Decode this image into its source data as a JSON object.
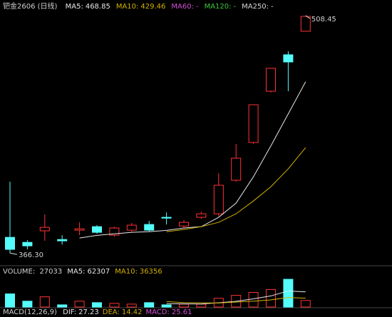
{
  "chart_data": {
    "type": "candlestick",
    "title": "钯金2606 (日线)",
    "up_color": "#ff3232",
    "down_color": "#54fcfc",
    "open": [
      375.7,
      372.7,
      379.6,
      374.4,
      380.0,
      382.1,
      377.0,
      380.0,
      383.4,
      387.7,
      382.5,
      387.7,
      389.8,
      409.9,
      432.5,
      463.2,
      485.0,
      499.1
    ],
    "high": [
      409.0,
      374.0,
      389.4,
      377.0,
      384.7,
      383.0,
      382.1,
      384.3,
      385.5,
      390.6,
      386.0,
      391.1,
      414.1,
      431.6,
      455.1,
      476.9,
      487.1,
      508.45
    ],
    "low": [
      366.3,
      368.5,
      373.6,
      371.4,
      377.0,
      377.9,
      376.1,
      379.1,
      379.1,
      383.4,
      381.3,
      386.8,
      388.5,
      409.0,
      431.6,
      462.4,
      463.2,
      499.1
    ],
    "close": [
      368.5,
      370.6,
      381.7,
      373.6,
      380.8,
      378.7,
      381.3,
      383.0,
      380.0,
      387.2,
      384.7,
      389.8,
      406.9,
      423.1,
      455.1,
      476.9,
      480.7,
      508.0
    ],
    "ylim": [
      360.0,
      511.4
    ],
    "annotations": [
      {
        "text": "508.45"
      },
      {
        "text": "366.30"
      }
    ],
    "series": [
      {
        "name": "MA5:",
        "color": "#e8e8e8",
        "values": [
          null,
          null,
          null,
          null,
          375.3,
          376.9,
          377.8,
          378.7,
          379.1,
          379.9,
          381.3,
          382.1,
          387.7,
          396.2,
          412.0,
          430.4,
          449.6,
          468.85
        ]
      },
      {
        "name": "MA10:",
        "color": "#d4b100",
        "values": [
          null,
          null,
          null,
          null,
          null,
          null,
          null,
          null,
          null,
          379.1,
          380.4,
          382.1,
          384.7,
          389.8,
          397.5,
          406.0,
          416.7,
          429.46
        ]
      }
    ],
    "other_ma": [
      {
        "name": "MA60:",
        "text": "-",
        "color": "#d24fd2"
      },
      {
        "name": "MA120:",
        "text": "-",
        "color": "#3cc83c"
      },
      {
        "name": "MA250:",
        "text": "-",
        "color": "#d8d8d8"
      }
    ],
    "volume": {
      "title": "VOLUME:",
      "values": [
        54000,
        24000,
        42000,
        9000,
        24000,
        18000,
        15000,
        12000,
        18000,
        9000,
        12000,
        12000,
        36000,
        48000,
        60000,
        72000,
        114000,
        27033
      ],
      "ylim": [
        0,
        120000
      ],
      "series": [
        {
          "name": "MA5:",
          "color": "#e8e8e8",
          "values": [
            null,
            null,
            null,
            null,
            null,
            null,
            null,
            null,
            null,
            14400,
            13200,
            12600,
            17400,
            23400,
            33600,
            45600,
            66000,
            62307
          ]
        },
        {
          "name": "MA10:",
          "color": "#d4b100",
          "values": [
            null,
            null,
            null,
            null,
            null,
            null,
            null,
            null,
            null,
            22500,
            18300,
            17100,
            16500,
            20400,
            24000,
            29400,
            39300,
            36356
          ]
        }
      ]
    },
    "macd": {
      "title": "MACD(12,26,9)",
      "items": [
        {
          "name": "DIF:",
          "value": 27.23,
          "color": "#e8e8e8"
        },
        {
          "name": "DEA:",
          "value": 14.42,
          "color": "#d4b100"
        },
        {
          "name": "MACD:",
          "value": 25.61,
          "color": "#d24fd2"
        }
      ]
    }
  }
}
